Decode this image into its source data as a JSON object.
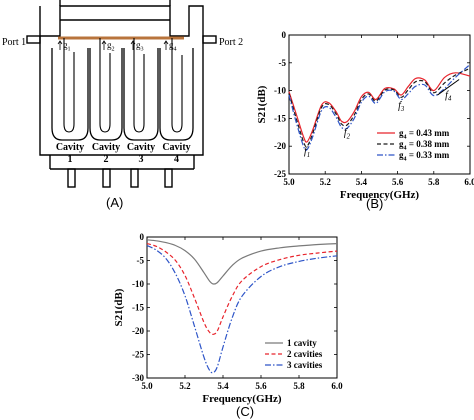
{
  "panel_labels": {
    "a": "(A)",
    "b": "(B)",
    "c": "(C)"
  },
  "diagram": {
    "port_left": "Port 1",
    "port_right": "Port 2",
    "gaps": [
      "g",
      "g",
      "g",
      "g"
    ],
    "gap_subscripts": [
      "1",
      "2",
      "3",
      "4"
    ],
    "cavity_word": "Cavity",
    "cavity_numbers": [
      "1",
      "2",
      "3",
      "4"
    ],
    "colors": {
      "strip": "#b8743c",
      "outline": "#000000"
    }
  },
  "chart_data": [
    {
      "type": "line",
      "panel": "B",
      "xlabel": "Frequency(GHz)",
      "ylabel": "S21(dB)",
      "xlim": [
        5.0,
        6.0
      ],
      "ylim": [
        -25,
        0
      ],
      "xticks": [
        "5.0",
        "5.2",
        "5.4",
        "5.6",
        "5.8",
        "6.0"
      ],
      "yticks": [
        "-25",
        "-20",
        "-15",
        "-10",
        "-5",
        "0"
      ],
      "legend_position": "bottom-right",
      "series": [
        {
          "name": "g4 = 0.43 mm",
          "legend_main": "g",
          "legend_sub": "4",
          "legend_rest": " = 0.43 mm",
          "color": "#e8242c",
          "dash": "",
          "x": [
            5.0,
            5.04,
            5.08,
            5.1,
            5.13,
            5.18,
            5.22,
            5.26,
            5.29,
            5.32,
            5.36,
            5.4,
            5.44,
            5.48,
            5.53,
            5.58,
            5.62,
            5.66,
            5.7,
            5.75,
            5.8,
            5.86,
            5.92,
            6.0
          ],
          "y": [
            -10.2,
            -14.2,
            -18.3,
            -19.2,
            -17.2,
            -12.6,
            -12.2,
            -13.8,
            -15.5,
            -15.6,
            -13.8,
            -11.1,
            -10.3,
            -11.6,
            -9.6,
            -9.7,
            -10.8,
            -9.2,
            -7.8,
            -8.1,
            -10.0,
            -7.6,
            -6.8,
            -7.4
          ]
        },
        {
          "name": "g4 = 0.38 mm",
          "legend_main": "g",
          "legend_sub": "4",
          "legend_rest": " = 0.38 mm",
          "color": "#1a1a1a",
          "dash": "4,2.5",
          "x": [
            5.0,
            5.04,
            5.08,
            5.1,
            5.13,
            5.18,
            5.22,
            5.26,
            5.29,
            5.32,
            5.36,
            5.4,
            5.44,
            5.48,
            5.53,
            5.58,
            5.62,
            5.66,
            5.7,
            5.75,
            5.8,
            5.86,
            5.92,
            6.0
          ],
          "y": [
            -10.5,
            -15.0,
            -19.2,
            -20.0,
            -17.8,
            -13.0,
            -12.5,
            -14.2,
            -16.0,
            -16.2,
            -14.4,
            -11.6,
            -10.6,
            -11.9,
            -9.9,
            -9.9,
            -11.2,
            -9.8,
            -8.4,
            -8.4,
            -10.4,
            -8.6,
            -7.2,
            -6.0
          ]
        },
        {
          "name": "g4 = 0.33 mm",
          "legend_main": "g",
          "legend_sub": "4",
          "legend_rest": " = 0.33 mm",
          "color": "#2e55c8",
          "dash": "6,2,1.5,2",
          "x": [
            5.0,
            5.04,
            5.08,
            5.1,
            5.13,
            5.18,
            5.22,
            5.26,
            5.29,
            5.32,
            5.36,
            5.4,
            5.44,
            5.48,
            5.53,
            5.58,
            5.62,
            5.66,
            5.7,
            5.75,
            5.8,
            5.86,
            5.92,
            6.0
          ],
          "y": [
            -10.8,
            -15.7,
            -20.0,
            -20.6,
            -18.4,
            -13.6,
            -13.0,
            -14.8,
            -16.6,
            -16.8,
            -15.0,
            -12.1,
            -11.0,
            -12.3,
            -10.2,
            -10.1,
            -11.6,
            -10.5,
            -9.2,
            -9.0,
            -10.9,
            -9.6,
            -7.6,
            -5.3
          ]
        }
      ],
      "annotations": [
        {
          "main": "f",
          "sub": "1",
          "x": 5.1,
          "y": -21.4
        },
        {
          "main": "f",
          "sub": "2",
          "x": 5.32,
          "y": -18.1
        },
        {
          "main": "f",
          "sub": "3",
          "x": 5.62,
          "y": -13.2
        },
        {
          "main": "f",
          "sub": "4",
          "x": 5.88,
          "y": -11.3
        }
      ]
    },
    {
      "type": "line",
      "panel": "C",
      "xlabel": "Frequency(GHz)",
      "ylabel": "S21(dB)",
      "xlim": [
        5.0,
        6.0
      ],
      "ylim": [
        -30,
        0
      ],
      "xticks": [
        "5.0",
        "5.2",
        "5.4",
        "5.6",
        "5.8",
        "6.0"
      ],
      "yticks": [
        "-30",
        "-25",
        "-20",
        "-15",
        "-10",
        "-5",
        "0"
      ],
      "legend_position": "bottom-right",
      "series": [
        {
          "name": "1 cavity",
          "color": "#7a7a7a",
          "dash": "",
          "x": [
            5.0,
            5.05,
            5.1,
            5.15,
            5.2,
            5.25,
            5.3,
            5.33,
            5.35,
            5.37,
            5.4,
            5.45,
            5.5,
            5.6,
            5.7,
            5.8,
            5.9,
            6.0
          ],
          "y": [
            -0.6,
            -0.8,
            -1.2,
            -1.8,
            -2.9,
            -4.7,
            -7.6,
            -9.4,
            -10.0,
            -9.7,
            -8.3,
            -6.0,
            -4.5,
            -3.0,
            -2.3,
            -1.9,
            -1.6,
            -1.4
          ]
        },
        {
          "name": "2 cavities",
          "color": "#e8242c",
          "dash": "4,2.5",
          "x": [
            5.0,
            5.05,
            5.1,
            5.15,
            5.2,
            5.25,
            5.3,
            5.33,
            5.35,
            5.37,
            5.4,
            5.45,
            5.5,
            5.6,
            5.7,
            5.8,
            5.9,
            6.0
          ],
          "y": [
            -1.4,
            -2.0,
            -3.2,
            -5.0,
            -8.2,
            -13.0,
            -18.2,
            -20.3,
            -20.7,
            -20.0,
            -17.0,
            -12.5,
            -9.3,
            -6.3,
            -4.8,
            -3.9,
            -3.4,
            -3.0
          ]
        },
        {
          "name": "3 cavities",
          "color": "#2e55c8",
          "dash": "6,2,1.5,2",
          "x": [
            5.0,
            5.05,
            5.1,
            5.15,
            5.2,
            5.25,
            5.3,
            5.33,
            5.35,
            5.37,
            5.4,
            5.45,
            5.5,
            5.6,
            5.7,
            5.8,
            5.9,
            6.0
          ],
          "y": [
            -1.8,
            -2.8,
            -4.6,
            -7.8,
            -12.5,
            -19.0,
            -25.6,
            -28.4,
            -28.8,
            -27.6,
            -23.4,
            -17.0,
            -12.6,
            -8.4,
            -6.3,
            -5.2,
            -4.5,
            -4.0
          ]
        }
      ]
    }
  ]
}
